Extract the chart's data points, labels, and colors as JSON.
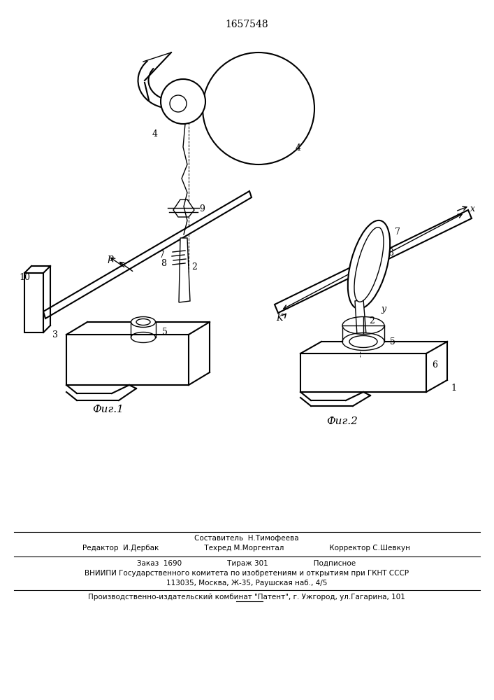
{
  "title": "1657548",
  "bg_color": "#ffffff",
  "line_color": "#000000",
  "fig1_caption": "Фиг.1",
  "fig2_caption": "Фиг.2",
  "footer_line1": "Составитель  Н.Тимофеева",
  "footer_line2a": "Редактор  И.Дербак",
  "footer_line2b": "Техред М.Моргентал",
  "footer_line2c": "Корректор С.Шевкун",
  "footer_line3a": "Заказ  1690",
  "footer_line3b": "Тираж 301",
  "footer_line3c": "Подписное",
  "footer_line4": "ВНИИПИ Государственного комитета по изобретениям и открытиям при ГКНТ СССР",
  "footer_line5": "113035, Москва, Ж-35, Раушская наб., 4/5",
  "footer_line6": "Производственно-издательский комбинат \"Патент\", г. Ужгород, ул.Гагарина, 101"
}
